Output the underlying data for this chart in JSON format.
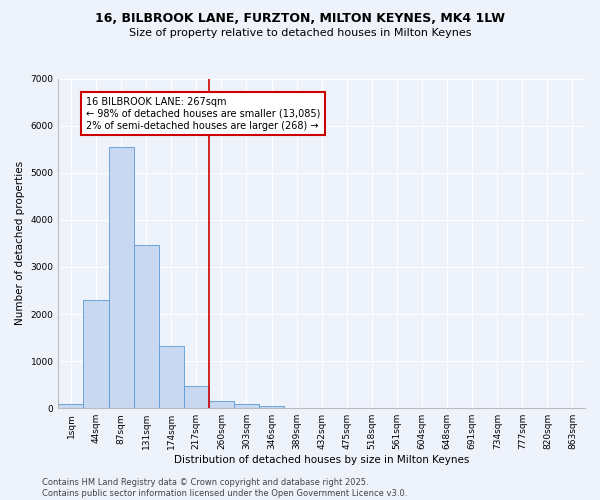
{
  "title": "16, BILBROOK LANE, FURZTON, MILTON KEYNES, MK4 1LW",
  "subtitle": "Size of property relative to detached houses in Milton Keynes",
  "xlabel": "Distribution of detached houses by size in Milton Keynes",
  "ylabel": "Number of detached properties",
  "categories": [
    "1sqm",
    "44sqm",
    "87sqm",
    "131sqm",
    "174sqm",
    "217sqm",
    "260sqm",
    "303sqm",
    "346sqm",
    "389sqm",
    "432sqm",
    "475sqm",
    "518sqm",
    "561sqm",
    "604sqm",
    "648sqm",
    "691sqm",
    "734sqm",
    "777sqm",
    "820sqm",
    "863sqm"
  ],
  "values": [
    80,
    2300,
    5550,
    3470,
    1330,
    480,
    155,
    85,
    40,
    0,
    0,
    0,
    0,
    0,
    0,
    0,
    0,
    0,
    0,
    0,
    0
  ],
  "bar_color": "#c8d8f0",
  "bar_edge_color": "#5b9bd5",
  "vline_index": 6,
  "vline_color": "#cc0000",
  "annotation_text": "16 BILBROOK LANE: 267sqm\n← 98% of detached houses are smaller (13,085)\n2% of semi-detached houses are larger (268) →",
  "annotation_box_color": "#cc0000",
  "annotation_fill": "#ffffff",
  "ylim": [
    0,
    7000
  ],
  "yticks": [
    0,
    1000,
    2000,
    3000,
    4000,
    5000,
    6000,
    7000
  ],
  "footer": "Contains HM Land Registry data © Crown copyright and database right 2025.\nContains public sector information licensed under the Open Government Licence v3.0.",
  "background_color": "#eef2fb",
  "grid_color": "#ffffff",
  "title_fontsize": 9,
  "subtitle_fontsize": 8,
  "axis_label_fontsize": 7.5,
  "tick_fontsize": 6.5,
  "annotation_fontsize": 7,
  "footer_fontsize": 6
}
